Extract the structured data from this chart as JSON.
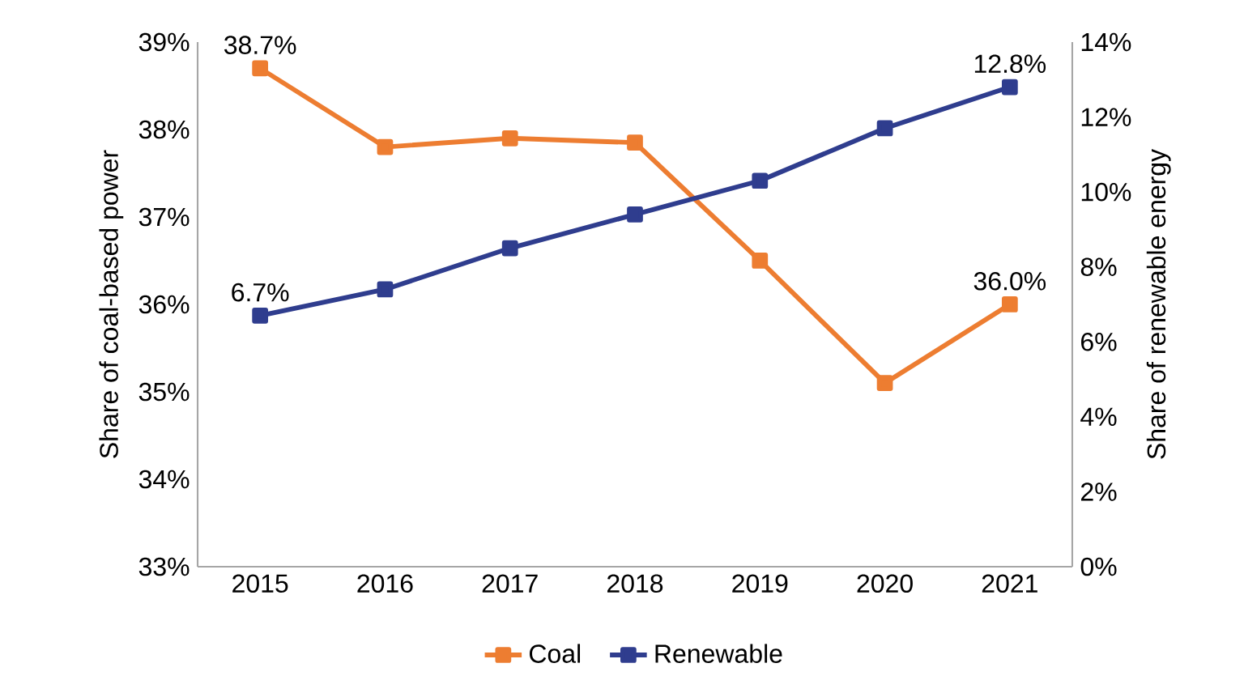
{
  "chart_data": {
    "type": "line",
    "ylabel": "Share of coal-based power",
    "y2label": "Share of renewable energy",
    "categories": [
      "2015",
      "2016",
      "2017",
      "2018",
      "2019",
      "2020",
      "2021"
    ],
    "series": [
      {
        "name": "Coal",
        "color": "#ed7d31",
        "values": [
          38.7,
          37.8,
          37.9,
          37.85,
          36.5,
          35.1,
          36.0
        ],
        "value_labels": [
          "38.7%",
          null,
          null,
          null,
          null,
          null,
          "36.0%"
        ]
      },
      {
        "name": "Renewable",
        "color": "#2f3d8e",
        "axis": "y2",
        "values": [
          6.7,
          7.4,
          8.5,
          9.4,
          10.3,
          11.7,
          12.8
        ],
        "value_labels": [
          "6.7%",
          null,
          null,
          null,
          null,
          null,
          "12.8%"
        ]
      }
    ],
    "ylim": [
      33,
      39
    ],
    "yticks": [
      {
        "value": 33,
        "label": "33%"
      },
      {
        "value": 34,
        "label": "34%"
      },
      {
        "value": 35,
        "label": "35%"
      },
      {
        "value": 36,
        "label": "36%"
      },
      {
        "value": 37,
        "label": "37%"
      },
      {
        "value": 38,
        "label": "38%"
      },
      {
        "value": 39,
        "label": "39%"
      }
    ],
    "y2lim": [
      0,
      14
    ],
    "y2ticks": [
      {
        "value": 0,
        "label": "0%"
      },
      {
        "value": 2,
        "label": "2%"
      },
      {
        "value": 4,
        "label": "4%"
      },
      {
        "value": 6,
        "label": "6%"
      },
      {
        "value": 8,
        "label": "8%"
      },
      {
        "value": 10,
        "label": "10%"
      },
      {
        "value": 12,
        "label": "12%"
      },
      {
        "value": 14,
        "label": "14%"
      }
    ],
    "legend": "bottom",
    "marker": "square",
    "line_style": "solid",
    "grid": false
  }
}
